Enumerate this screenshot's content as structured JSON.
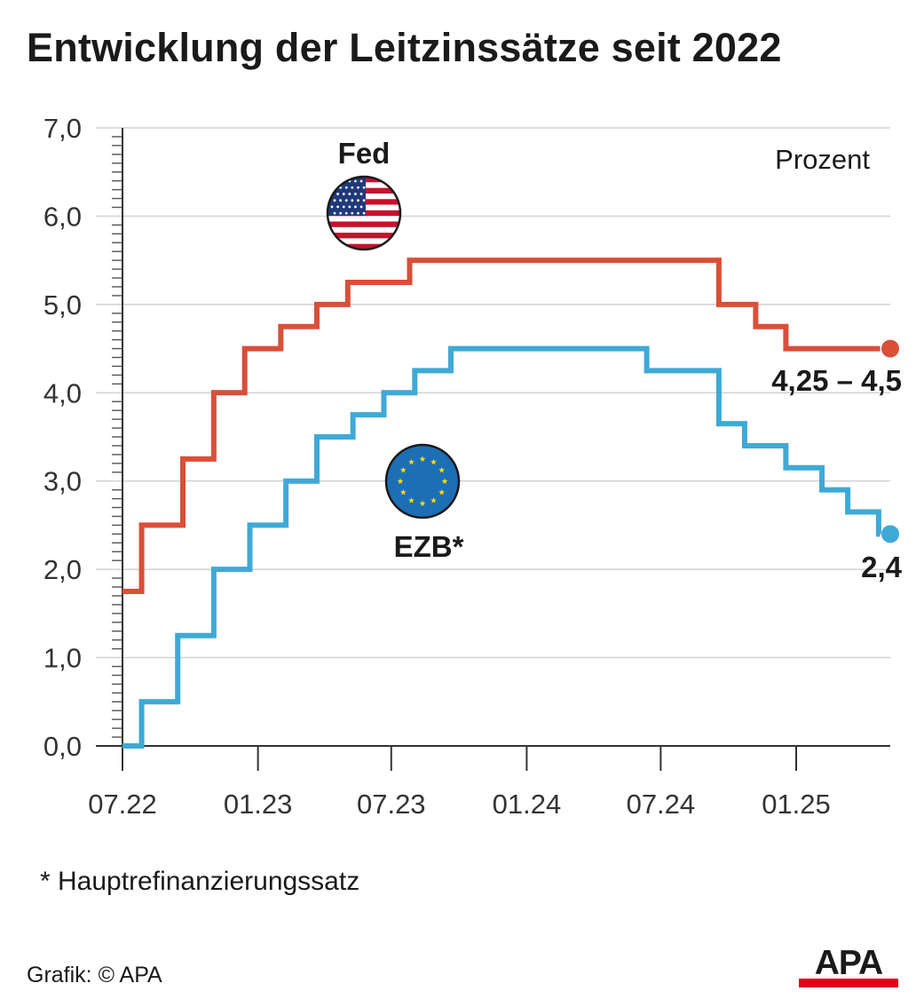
{
  "chart_data": {
    "type": "line",
    "title": "Entwicklung der Leitzinssätze seit 2022",
    "unit_label": "Prozent",
    "x_ticks": [
      "07.22",
      "01.23",
      "07.23",
      "01.24",
      "07.24",
      "01.25"
    ],
    "y_ticks": [
      "0,0",
      "1,0",
      "2,0",
      "3,0",
      "4,0",
      "5,0",
      "6,0",
      "7,0"
    ],
    "ylim": [
      0,
      7
    ],
    "xlim": [
      "2022-07-01",
      "2025-04-30"
    ],
    "grid": true,
    "line_style": "step",
    "series": [
      {
        "name": "Fed",
        "color": "#d94f38",
        "icon": "us-flag-icon",
        "end_label": "4,25 – 4,5",
        "points": [
          {
            "x": "2022-07-01",
            "y": 1.75
          },
          {
            "x": "2022-07-27",
            "y": 2.5
          },
          {
            "x": "2022-09-21",
            "y": 3.25
          },
          {
            "x": "2022-11-02",
            "y": 4.0
          },
          {
            "x": "2022-12-14",
            "y": 4.5
          },
          {
            "x": "2023-02-01",
            "y": 4.75
          },
          {
            "x": "2023-03-22",
            "y": 5.0
          },
          {
            "x": "2023-05-03",
            "y": 5.25
          },
          {
            "x": "2023-07-26",
            "y": 5.5
          },
          {
            "x": "2024-09-18",
            "y": 5.0
          },
          {
            "x": "2024-11-07",
            "y": 4.75
          },
          {
            "x": "2024-12-18",
            "y": 4.5
          }
        ],
        "end": "2025-04-25"
      },
      {
        "name": "EZB*",
        "color": "#3fa9d5",
        "icon": "eu-flag-icon",
        "end_label": "2,4",
        "points": [
          {
            "x": "2022-07-01",
            "y": 0.0
          },
          {
            "x": "2022-07-27",
            "y": 0.5
          },
          {
            "x": "2022-09-14",
            "y": 1.25
          },
          {
            "x": "2022-11-02",
            "y": 2.0
          },
          {
            "x": "2022-12-21",
            "y": 2.5
          },
          {
            "x": "2023-02-08",
            "y": 3.0
          },
          {
            "x": "2023-03-22",
            "y": 3.5
          },
          {
            "x": "2023-05-10",
            "y": 3.75
          },
          {
            "x": "2023-06-21",
            "y": 4.0
          },
          {
            "x": "2023-08-02",
            "y": 4.25
          },
          {
            "x": "2023-09-20",
            "y": 4.5
          },
          {
            "x": "2024-06-12",
            "y": 4.25
          },
          {
            "x": "2024-09-18",
            "y": 3.65
          },
          {
            "x": "2024-10-23",
            "y": 3.4
          },
          {
            "x": "2024-12-18",
            "y": 3.15
          },
          {
            "x": "2025-02-05",
            "y": 2.9
          },
          {
            "x": "2025-03-12",
            "y": 2.65
          },
          {
            "x": "2025-04-23",
            "y": 2.4
          }
        ],
        "end": "2025-04-25"
      }
    ]
  },
  "footnote": "* Hauptrefinanzierungssatz",
  "credit": "Grafik: © APA",
  "logo": {
    "text": "APA",
    "bar_color": "#e2001a",
    "text_color": "#1a1a1a"
  }
}
